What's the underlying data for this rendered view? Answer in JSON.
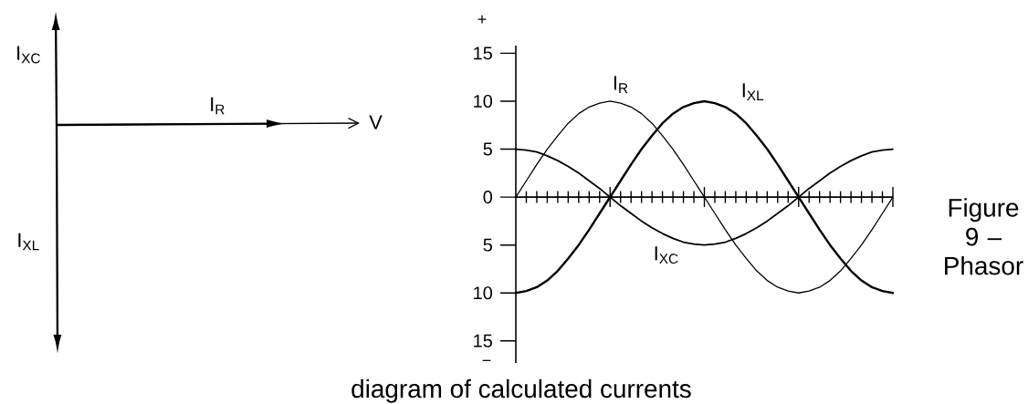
{
  "chart_data": [
    {
      "type": "other",
      "annotations": [
        "I$_{XC}$",
        "I$_{R}$",
        "V",
        "I$_{XL}$"
      ]
    },
    {
      "type": "line",
      "categories": [
        null,
        null,
        null,
        null,
        null,
        null,
        null,
        null,
        null,
        null,
        null,
        null,
        null,
        null,
        null,
        null,
        null,
        null,
        null,
        null,
        null,
        null,
        null,
        null,
        null,
        null,
        null,
        null,
        null,
        null,
        null,
        null,
        null,
        null,
        null,
        null,
        null
      ],
      "series": [
        {
          "name": "I$_{R}$",
          "color": "#000000",
          "values": [
            0,
            1.7,
            3.4,
            5,
            6.4,
            7.7,
            8.7,
            9.4,
            9.8,
            10,
            9.8,
            9.4,
            8.7,
            7.7,
            6.4,
            5,
            3.4,
            1.7,
            0,
            -1.7,
            -3.4,
            -5,
            -6.4,
            -7.7,
            -8.7,
            -9.4,
            -9.8,
            -10,
            -9.8,
            -9.4,
            -8.7,
            -7.7,
            -6.4,
            -5,
            -3.4,
            -1.7,
            0
          ]
        },
        {
          "name": "I$_{XL}$",
          "color": "#000000",
          "values": [
            -10,
            -9.8,
            -9.4,
            -8.7,
            -7.7,
            -6.4,
            -5,
            -3.4,
            -1.7,
            0,
            1.7,
            3.4,
            5,
            6.4,
            7.7,
            8.7,
            9.4,
            9.8,
            10,
            9.8,
            9.4,
            8.7,
            7.7,
            6.4,
            5,
            3.4,
            1.7,
            0,
            -1.7,
            -3.4,
            -5,
            -6.4,
            -7.7,
            -8.7,
            -9.4,
            -9.8,
            -10
          ]
        },
        {
          "name": "I$_{XC}$",
          "color": "#000000",
          "values": [
            5,
            4.9,
            4.7,
            4.3,
            3.8,
            3.2,
            2.5,
            1.7,
            0.9,
            0,
            -0.9,
            -1.7,
            -2.5,
            -3.2,
            -3.8,
            -4.3,
            -4.7,
            -4.9,
            -5,
            -4.9,
            -4.7,
            -4.3,
            -3.8,
            -3.2,
            -2.5,
            -1.7,
            -0.9,
            0,
            0.9,
            1.7,
            2.5,
            3.2,
            3.8,
            4.3,
            4.7,
            4.9,
            5
          ]
        }
      ],
      "ylim": [
        -17.3,
        15.8
      ],
      "yticks": [
        {
          "value": -15,
          "label": "15"
        },
        {
          "value": -10,
          "label": "10"
        },
        {
          "value": -5,
          "label": "5"
        },
        0,
        5,
        10,
        15
      ],
      "annotations": [
        "+",
        "−",
        "Figure 9 – Phasor",
        "diagram of calculated currents"
      ]
    }
  ]
}
